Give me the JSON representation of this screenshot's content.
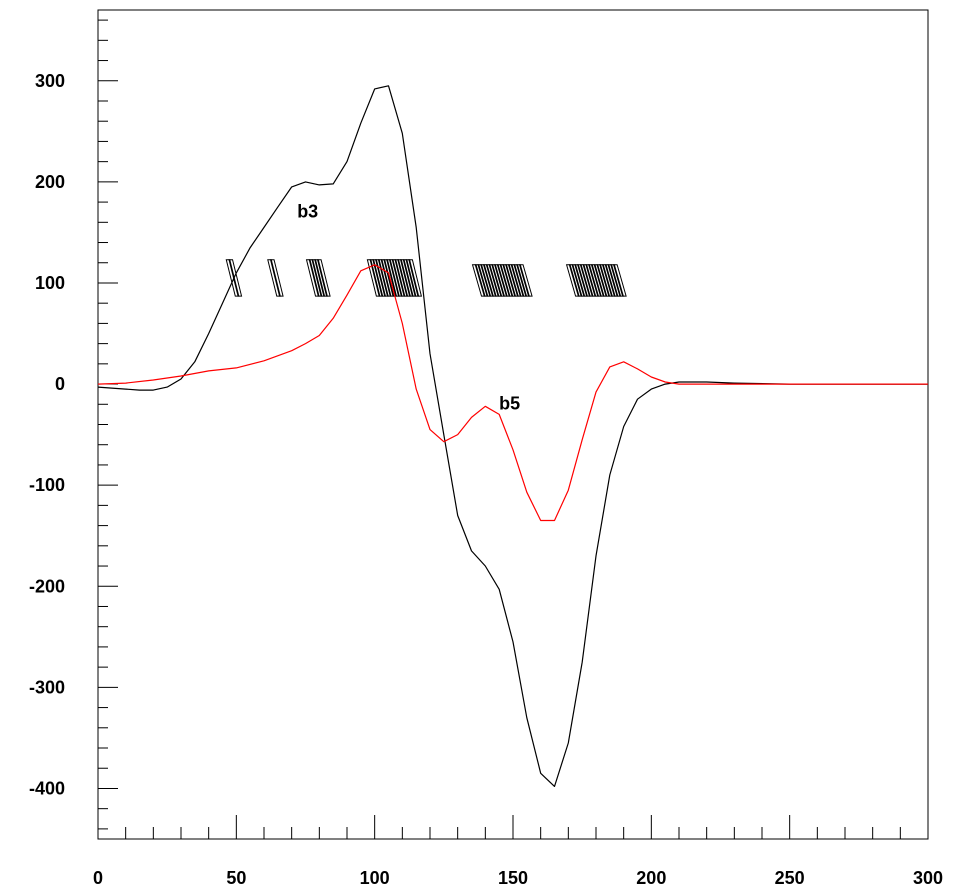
{
  "chart_data": {
    "type": "line",
    "title": "",
    "xlabel": "",
    "ylabel": "",
    "xlim": [
      0,
      300
    ],
    "ylim": [
      -450,
      370
    ],
    "xticks": [
      0,
      50,
      100,
      150,
      200,
      250,
      300
    ],
    "yticks": [
      -400,
      -300,
      -200,
      -100,
      0,
      100,
      200,
      300
    ],
    "xtick_labels": [
      "0",
      "50",
      "100",
      "150",
      "200",
      "250",
      "300"
    ],
    "ytick_labels": [
      "-400",
      "-300",
      "-200",
      "-100",
      "0",
      "100",
      "200",
      "300"
    ],
    "grid": false,
    "series": [
      {
        "name": "b3",
        "color": "#000000",
        "x": [
          0,
          5,
          10,
          15,
          20,
          25,
          30,
          35,
          40,
          45,
          50,
          55,
          60,
          65,
          70,
          75,
          80,
          85,
          90,
          95,
          100,
          105,
          110,
          115,
          120,
          125,
          130,
          135,
          140,
          145,
          150,
          155,
          160,
          165,
          170,
          175,
          180,
          185,
          190,
          195,
          200,
          205,
          210,
          215,
          220,
          230,
          250,
          270,
          290,
          300
        ],
        "y": [
          -3,
          -4,
          -5,
          -6,
          -6,
          -3,
          5,
          22,
          50,
          80,
          110,
          135,
          155,
          175,
          195,
          200,
          197,
          198,
          220,
          258,
          292,
          295,
          248,
          155,
          30,
          -50,
          -130,
          -165,
          -180,
          -203,
          -255,
          -330,
          -385,
          -398,
          -355,
          -275,
          -170,
          -90,
          -42,
          -15,
          -5,
          0,
          2,
          2,
          2,
          1,
          0,
          0,
          0,
          0
        ]
      },
      {
        "name": "b5",
        "color": "#ff0000",
        "x": [
          0,
          10,
          20,
          30,
          40,
          50,
          60,
          70,
          75,
          80,
          85,
          90,
          95,
          100,
          105,
          110,
          115,
          120,
          125,
          130,
          135,
          140,
          145,
          150,
          155,
          160,
          165,
          170,
          175,
          180,
          185,
          190,
          195,
          200,
          205,
          210,
          215,
          220,
          230,
          250,
          270,
          290,
          300
        ],
        "y": [
          0,
          1,
          4,
          8,
          13,
          16,
          23,
          33,
          40,
          48,
          65,
          88,
          112,
          118,
          110,
          60,
          -5,
          -45,
          -57,
          -50,
          -33,
          -22,
          -30,
          -65,
          -107,
          -135,
          -135,
          -105,
          -55,
          -8,
          17,
          22,
          15,
          7,
          2,
          0,
          0,
          0,
          0,
          0,
          0,
          0,
          0
        ]
      }
    ],
    "annotations": [
      {
        "text": "b3",
        "x": 72,
        "y": 165
      },
      {
        "text": "b5",
        "x": 145,
        "y": -25
      }
    ],
    "marker_groups": [
      {
        "x": [
          47,
          48
        ],
        "y_top": 123,
        "y_bottom": 87
      },
      {
        "x": [
          62,
          63
        ],
        "y_top": 123,
        "y_bottom": 87
      },
      {
        "x": [
          76,
          77,
          78,
          79,
          80
        ],
        "y_top": 123,
        "y_bottom": 87
      },
      {
        "x": [
          98,
          99,
          100,
          101,
          102,
          103,
          104,
          105,
          106,
          107,
          108,
          109,
          110,
          111,
          112,
          113
        ],
        "y_top": 123,
        "y_bottom": 87
      },
      {
        "x": [
          136,
          137,
          138,
          139,
          140,
          141,
          142,
          143,
          144,
          145,
          146,
          147,
          148,
          149,
          150,
          151,
          152,
          153
        ],
        "y_top": 118,
        "y_bottom": 87
      },
      {
        "x": [
          170,
          171,
          172,
          173,
          174,
          175,
          176,
          177,
          178,
          179,
          180,
          181,
          182,
          183,
          184,
          185,
          186,
          187
        ],
        "y_top": 118,
        "y_bottom": 87
      }
    ]
  }
}
